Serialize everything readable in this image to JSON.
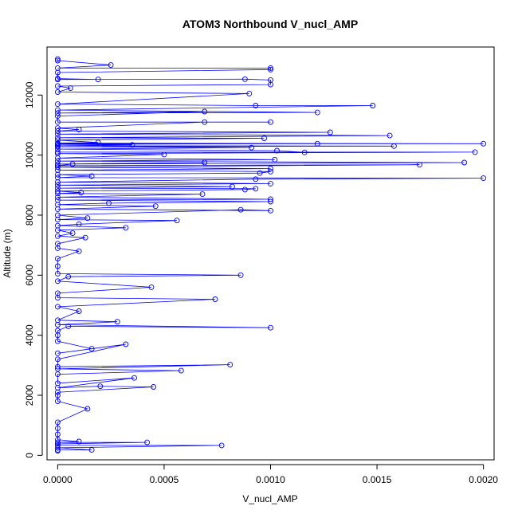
{
  "chart_data": {
    "type": "line",
    "title": "ATOM3 Northbound V_nucl_AMP",
    "xlabel": "V_nucl_AMP",
    "ylabel": "Altitude (m)",
    "xlim": [
      -5e-05,
      0.00205
    ],
    "ylim": [
      -150,
      13600
    ],
    "xticks": [
      0,
      0.0005,
      0.001,
      0.0015,
      0.002
    ],
    "xtick_labels": [
      "0.0000",
      "0.0005",
      "0.0010",
      "0.0015",
      "0.0020"
    ],
    "yticks": [
      0,
      2000,
      4000,
      6000,
      8000,
      10000,
      12000
    ],
    "ytick_labels": [
      "0",
      "2000",
      "4000",
      "6000",
      "8000",
      "10000",
      "12000"
    ],
    "grid": false,
    "legend": "none",
    "series_color": "#0000ff",
    "marker": "open-circle",
    "series": [
      {
        "points": [
          [
            0.0,
            150
          ],
          [
            0.0,
            180
          ],
          [
            0.00016,
            180
          ],
          [
            0.0,
            250
          ],
          [
            0.00077,
            330
          ],
          [
            0.0,
            330
          ],
          [
            0.0,
            380
          ],
          [
            0.00042,
            430
          ],
          [
            0.0,
            430
          ],
          [
            0.0001,
            460
          ],
          [
            0.0,
            520
          ],
          [
            0.0,
            700
          ],
          [
            0.0,
            900
          ],
          [
            0.0,
            1100
          ],
          [
            0.00014,
            1550
          ],
          [
            0.0,
            1800
          ],
          [
            0.0,
            2000
          ],
          [
            0.0,
            2100
          ],
          [
            0.00045,
            2280
          ],
          [
            0.0002,
            2300
          ],
          [
            0.0,
            2250
          ],
          [
            0.00036,
            2580
          ],
          [
            0.0,
            2400
          ],
          [
            0.0,
            2700
          ],
          [
            0.00058,
            2820
          ],
          [
            0.0,
            2880
          ],
          [
            0.00081,
            3020
          ],
          [
            0.0,
            2950
          ],
          [
            0.0,
            3200
          ],
          [
            0.00032,
            3700
          ],
          [
            0.0,
            3400
          ],
          [
            0.00016,
            3550
          ],
          [
            0.0,
            3800
          ],
          [
            0.0,
            4000
          ],
          [
            0.0,
            4150
          ],
          [
            5e-05,
            4300
          ],
          [
            0.001,
            4250
          ],
          [
            0.0,
            4350
          ],
          [
            0.00028,
            4450
          ],
          [
            0.0,
            4500
          ],
          [
            0.0001,
            4800
          ],
          [
            0.0,
            4950
          ],
          [
            0.00074,
            5200
          ],
          [
            0.0,
            5250
          ],
          [
            0.0,
            5400
          ],
          [
            0.00044,
            5600
          ],
          [
            0.0,
            5800
          ],
          [
            5e-05,
            5950
          ],
          [
            0.00086,
            6000
          ],
          [
            0.0,
            6050
          ],
          [
            0.0,
            6300
          ],
          [
            0.0,
            6550
          ],
          [
            0.0001,
            6800
          ],
          [
            0.0,
            6900
          ],
          [
            0.0,
            7050
          ],
          [
            0.00013,
            7250
          ],
          [
            0.0,
            7300
          ],
          [
            7e-05,
            7400
          ],
          [
            0.0,
            7500
          ],
          [
            0.00032,
            7580
          ],
          [
            0.0,
            7650
          ],
          [
            0.0001,
            7700
          ],
          [
            0.00056,
            7820
          ],
          [
            0.0,
            7850
          ],
          [
            0.00014,
            7900
          ],
          [
            0.0,
            8000
          ],
          [
            0.00086,
            8180
          ],
          [
            0.001,
            8150
          ],
          [
            0.0,
            8200
          ],
          [
            0.00046,
            8300
          ],
          [
            0.0,
            8350
          ],
          [
            0.00024,
            8400
          ],
          [
            0.001,
            8450
          ],
          [
            0.0,
            8500
          ],
          [
            0.001,
            8530
          ],
          [
            0.0,
            8600
          ],
          [
            0.00068,
            8700
          ],
          [
            0.0,
            8720
          ],
          [
            0.00011,
            8750
          ],
          [
            0.0,
            8800
          ],
          [
            0.00088,
            8850
          ],
          [
            0.00093,
            8880
          ],
          [
            0.0,
            8900
          ],
          [
            0.00082,
            8950
          ],
          [
            0.0,
            9000
          ],
          [
            0.001,
            9050
          ],
          [
            0.0,
            9100
          ],
          [
            0.00093,
            9200
          ],
          [
            0.002,
            9230
          ],
          [
            0.0,
            9250
          ],
          [
            0.00016,
            9300
          ],
          [
            0.0,
            9350
          ],
          [
            0.00095,
            9400
          ],
          [
            0.001,
            9450
          ],
          [
            0.0,
            9500
          ],
          [
            0.001,
            9550
          ],
          [
            0.0,
            9600
          ],
          [
            0.0017,
            9680
          ],
          [
            0.0,
            9650
          ],
          [
            7e-05,
            9700
          ],
          [
            0.00069,
            9750
          ],
          [
            0.0,
            9700
          ],
          [
            0.00191,
            9750
          ],
          [
            0.0,
            9800
          ],
          [
            0.00102,
            9850
          ],
          [
            0.0,
            9900
          ],
          [
            0.0005,
            10020
          ],
          [
            0.0,
            10050
          ],
          [
            0.00196,
            10100
          ],
          [
            0.0,
            10100
          ],
          [
            0.00116,
            10090
          ],
          [
            0.00103,
            10150
          ],
          [
            0.0,
            10200
          ],
          [
            0.00091,
            10250
          ],
          [
            0.0,
            10280
          ],
          [
            0.00158,
            10300
          ],
          [
            0.0,
            10310
          ],
          [
            0.00035,
            10340
          ],
          [
            0.0,
            10360
          ],
          [
            0.00122,
            10380
          ],
          [
            0.0,
            10380
          ],
          [
            0.002,
            10380
          ],
          [
            0.0,
            10400
          ],
          [
            0.00019,
            10420
          ],
          [
            0.0,
            10500
          ],
          [
            0.00097,
            10560
          ],
          [
            0.0,
            10580
          ],
          [
            0.00156,
            10650
          ],
          [
            0.0,
            10700
          ],
          [
            0.00128,
            10760
          ],
          [
            0.0,
            10800
          ],
          [
            0.0001,
            10850
          ],
          [
            0.0,
            10900
          ],
          [
            0.00069,
            11100
          ],
          [
            0.001,
            11100
          ],
          [
            0.0,
            11100
          ],
          [
            0.0,
            11300
          ],
          [
            0.00069,
            11450
          ],
          [
            0.0,
            11400
          ],
          [
            0.00122,
            11420
          ],
          [
            0.0,
            11500
          ],
          [
            0.00148,
            11650
          ],
          [
            0.00093,
            11650
          ],
          [
            0.0,
            11700
          ],
          [
            0.0009,
            12050
          ],
          [
            0.0,
            12100
          ],
          [
            6e-05,
            12230
          ],
          [
            0.0,
            12300
          ],
          [
            0.001,
            12350
          ],
          [
            0.001,
            12500
          ],
          [
            0.00088,
            12530
          ],
          [
            0.0,
            12520
          ],
          [
            0.00019,
            12520
          ],
          [
            0.0,
            12550
          ],
          [
            0.0,
            12750
          ],
          [
            0.001,
            12850
          ],
          [
            0.001,
            12900
          ],
          [
            0.0,
            12900
          ],
          [
            0.00025,
            13000
          ],
          [
            0.0,
            13150
          ],
          [
            0.0,
            13200
          ]
        ]
      }
    ]
  }
}
